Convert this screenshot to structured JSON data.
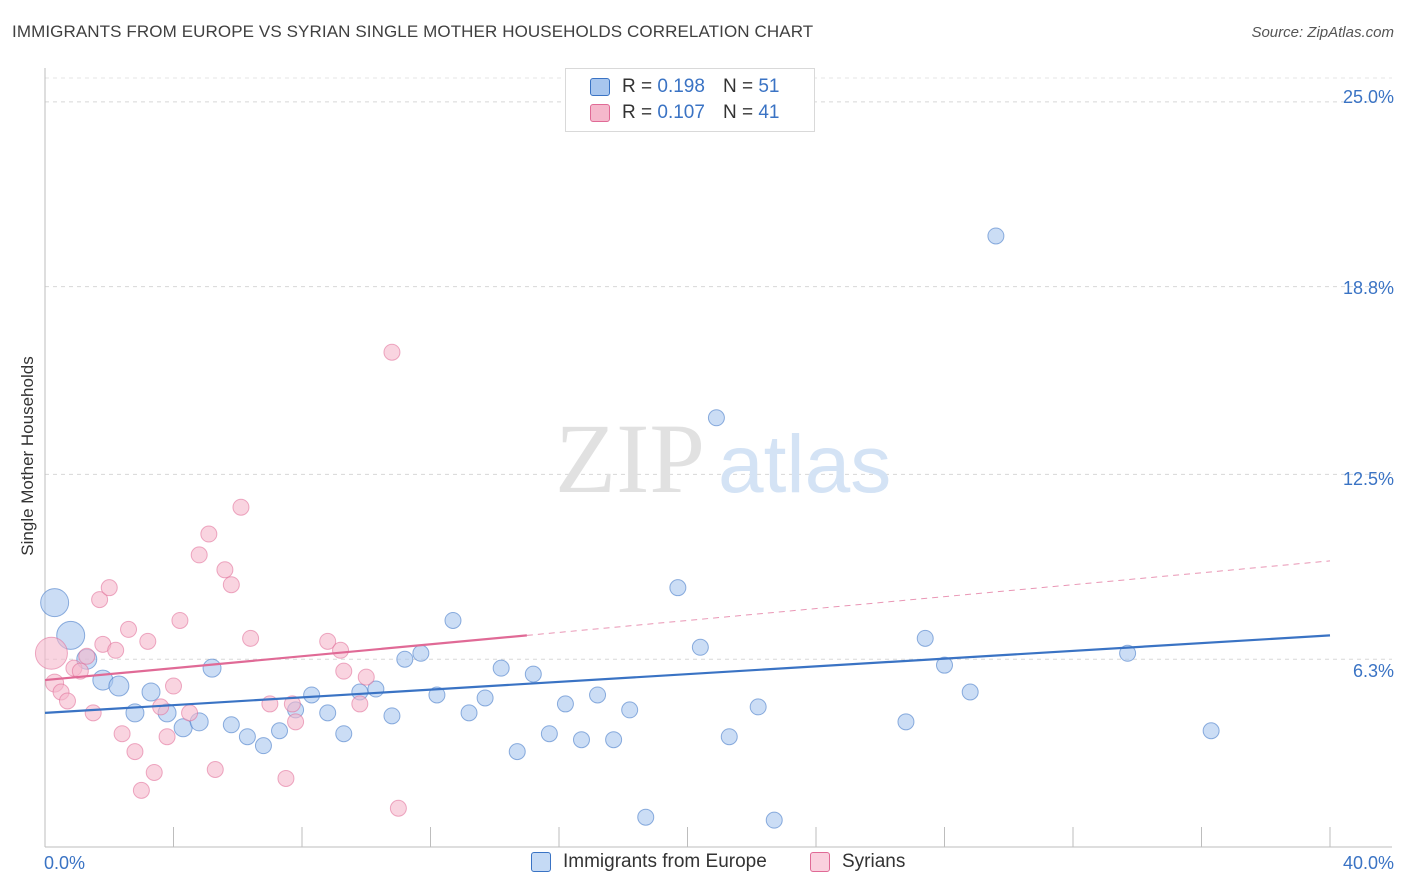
{
  "title": "IMMIGRANTS FROM EUROPE VS SYRIAN SINGLE MOTHER HOUSEHOLDS CORRELATION CHART",
  "source": "Source: ZipAtlas.com",
  "watermark": {
    "zip": "ZIP",
    "atlas": "atlas"
  },
  "legend_top": [
    {
      "r_label": "R =",
      "r_value": "0.198",
      "n_label": "N =",
      "n_value": "51",
      "color": "#a8c6ee"
    },
    {
      "r_label": "R =",
      "r_value": "0.107",
      "n_label": "N =",
      "n_value": "41",
      "color": "#f5b8cc"
    }
  ],
  "chart_data": {
    "type": "scatter",
    "ylabel": "Single Mother Households",
    "xlim": [
      0,
      40
    ],
    "ylim": [
      0,
      25.8
    ],
    "x_tick_labels": [
      "0.0%",
      "40.0%"
    ],
    "y_ticks": [
      6.3,
      12.5,
      18.8,
      25.0
    ],
    "y_tick_labels": [
      "6.3%",
      "12.5%",
      "18.8%",
      "25.0%"
    ],
    "grid": "horizontal-dashed",
    "legend_placement": "bottom-center",
    "series": [
      {
        "name": "Immigrants from Europe",
        "color": "#3a73c4",
        "fill": "#a8c6ee",
        "trend": {
          "x0": 0,
          "y0": 4.5,
          "x1": 40,
          "y1": 7.1
        },
        "points": [
          [
            0.3,
            8.2,
            14
          ],
          [
            0.8,
            7.1,
            14
          ],
          [
            1.3,
            6.3,
            10
          ],
          [
            1.8,
            5.6,
            10
          ],
          [
            2.3,
            5.4,
            10
          ],
          [
            2.8,
            4.5,
            9
          ],
          [
            3.3,
            5.2,
            9
          ],
          [
            3.8,
            4.5,
            9
          ],
          [
            4.3,
            4.0,
            9
          ],
          [
            4.8,
            4.2,
            9
          ],
          [
            5.2,
            6.0,
            9
          ],
          [
            5.8,
            4.1,
            8
          ],
          [
            6.3,
            3.7,
            8
          ],
          [
            6.8,
            3.4,
            8
          ],
          [
            7.3,
            3.9,
            8
          ],
          [
            7.8,
            4.6,
            8
          ],
          [
            8.3,
            5.1,
            8
          ],
          [
            8.8,
            4.5,
            8
          ],
          [
            9.3,
            3.8,
            8
          ],
          [
            9.8,
            5.2,
            8
          ],
          [
            10.3,
            5.3,
            8
          ],
          [
            10.8,
            4.4,
            8
          ],
          [
            11.2,
            6.3,
            8
          ],
          [
            11.7,
            6.5,
            8
          ],
          [
            12.2,
            5.1,
            8
          ],
          [
            12.7,
            7.6,
            8
          ],
          [
            13.2,
            4.5,
            8
          ],
          [
            13.7,
            5.0,
            8
          ],
          [
            14.2,
            6.0,
            8
          ],
          [
            14.7,
            3.2,
            8
          ],
          [
            15.2,
            5.8,
            8
          ],
          [
            15.7,
            3.8,
            8
          ],
          [
            16.2,
            4.8,
            8
          ],
          [
            16.7,
            3.6,
            8
          ],
          [
            17.2,
            5.1,
            8
          ],
          [
            17.7,
            3.6,
            8
          ],
          [
            18.2,
            4.6,
            8
          ],
          [
            18.7,
            1.0,
            8
          ],
          [
            19.7,
            8.7,
            8
          ],
          [
            20.4,
            6.7,
            8
          ],
          [
            20.9,
            14.4,
            8
          ],
          [
            21.3,
            3.7,
            8
          ],
          [
            22.2,
            4.7,
            8
          ],
          [
            22.7,
            0.9,
            8
          ],
          [
            26.8,
            4.2,
            8
          ],
          [
            27.4,
            7.0,
            8
          ],
          [
            28.0,
            6.1,
            8
          ],
          [
            28.8,
            5.2,
            8
          ],
          [
            29.6,
            20.5,
            8
          ],
          [
            33.7,
            6.5,
            8
          ],
          [
            36.3,
            3.9,
            8
          ]
        ]
      },
      {
        "name": "Syrians",
        "color": "#e06a96",
        "fill": "#f5b8cc",
        "trend": {
          "x0": 0,
          "y0": 5.6,
          "x1": 15,
          "y1": 7.1
        },
        "trend_extended": {
          "x0": 15,
          "y0": 7.1,
          "x1": 40,
          "y1": 9.6
        },
        "points": [
          [
            0.2,
            6.5,
            16
          ],
          [
            0.3,
            5.5,
            9
          ],
          [
            0.5,
            5.2,
            8
          ],
          [
            0.7,
            4.9,
            8
          ],
          [
            0.9,
            6.0,
            8
          ],
          [
            1.1,
            5.9,
            8
          ],
          [
            1.3,
            6.4,
            8
          ],
          [
            1.5,
            4.5,
            8
          ],
          [
            1.7,
            8.3,
            8
          ],
          [
            1.8,
            6.8,
            8
          ],
          [
            2.0,
            8.7,
            8
          ],
          [
            2.2,
            6.6,
            8
          ],
          [
            2.4,
            3.8,
            8
          ],
          [
            2.6,
            7.3,
            8
          ],
          [
            2.8,
            3.2,
            8
          ],
          [
            3.0,
            1.9,
            8
          ],
          [
            3.2,
            6.9,
            8
          ],
          [
            3.4,
            2.5,
            8
          ],
          [
            3.6,
            4.7,
            8
          ],
          [
            3.8,
            3.7,
            8
          ],
          [
            4.0,
            5.4,
            8
          ],
          [
            4.2,
            7.6,
            8
          ],
          [
            4.5,
            4.5,
            8
          ],
          [
            4.8,
            9.8,
            8
          ],
          [
            5.1,
            10.5,
            8
          ],
          [
            5.3,
            2.6,
            8
          ],
          [
            5.6,
            9.3,
            8
          ],
          [
            5.8,
            8.8,
            8
          ],
          [
            6.1,
            11.4,
            8
          ],
          [
            6.4,
            7.0,
            8
          ],
          [
            7.0,
            4.8,
            8
          ],
          [
            7.5,
            2.3,
            8
          ],
          [
            7.7,
            4.8,
            8
          ],
          [
            7.8,
            4.2,
            8
          ],
          [
            8.8,
            6.9,
            8
          ],
          [
            9.2,
            6.6,
            8
          ],
          [
            9.3,
            5.9,
            8
          ],
          [
            9.8,
            4.8,
            8
          ],
          [
            10.0,
            5.7,
            8
          ],
          [
            10.8,
            16.6,
            8
          ],
          [
            11.0,
            1.3,
            8
          ]
        ]
      }
    ]
  }
}
